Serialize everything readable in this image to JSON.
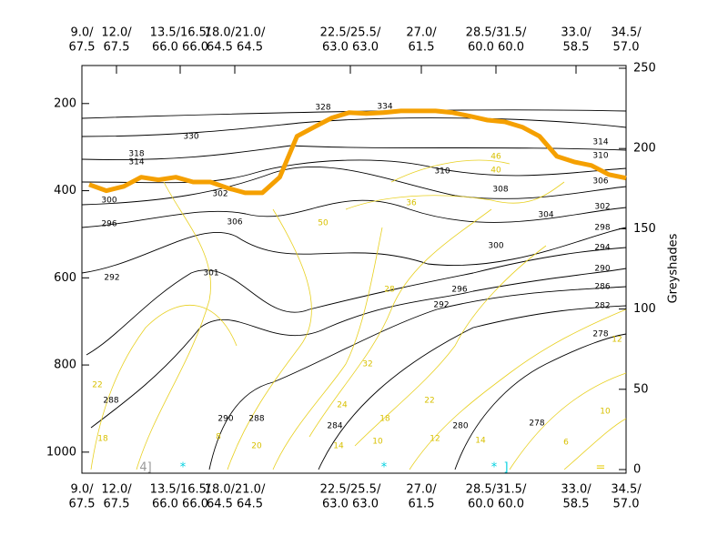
{
  "chart_data": {
    "type": "contour",
    "xlabels": [
      {
        "top": "9.0/",
        "bottom": "67.5"
      },
      {
        "top": "12.0/",
        "bottom": "67.5"
      },
      {
        "top": "13.5/16.5/",
        "bottom": "66.0  66.0"
      },
      {
        "top": "18.0/21.0/",
        "bottom": "64.5  64.5"
      },
      {
        "top": "22.5/25.5/",
        "bottom": "63.0  63.0"
      },
      {
        "top": "27.0/",
        "bottom": "61.5"
      },
      {
        "top": "28.5/31.5/",
        "bottom": "60.0  60.0"
      },
      {
        "top": "33.0/",
        "bottom": "58.5"
      },
      {
        "top": "34.5/",
        "bottom": "57.0"
      }
    ],
    "ylim": [
      1040,
      119
    ],
    "yticks": [
      200,
      400,
      600,
      800,
      1000
    ],
    "y2label": "Greyshades",
    "y2lim": [
      0,
      250
    ],
    "y2ticks": [
      0,
      50,
      100,
      150,
      200,
      250
    ],
    "series": [
      {
        "color": "#f5a000",
        "values": [
          386,
          400,
          390,
          369,
          375,
          369,
          380,
          380,
          394,
          405,
          405,
          369,
          275,
          254,
          233,
          221,
          223,
          221,
          217,
          217,
          217,
          221,
          229,
          238,
          242,
          254,
          275,
          321,
          334,
          342,
          363,
          371
        ]
      }
    ],
    "isentrope_labels": [
      "292",
      "296",
      "300",
      "302",
      "306",
      "314",
      "318",
      "330",
      "334",
      "328",
      "310",
      "308",
      "304",
      "300",
      "296",
      "292",
      "288",
      "290",
      "288",
      "284",
      "280",
      "278",
      "278",
      "282",
      "286",
      "290",
      "294",
      "298",
      "302",
      "306",
      "310",
      "314",
      "301"
    ],
    "wind_labels": [
      "36",
      "50",
      "40",
      "46",
      "22",
      "18",
      "8",
      "20",
      "24",
      "22",
      "18",
      "14",
      "12",
      "10",
      "14",
      "6",
      "10",
      "12",
      "32",
      "28"
    ],
    "markers": [
      "4]",
      "*",
      "*",
      "*",
      "]",
      "="
    ]
  }
}
